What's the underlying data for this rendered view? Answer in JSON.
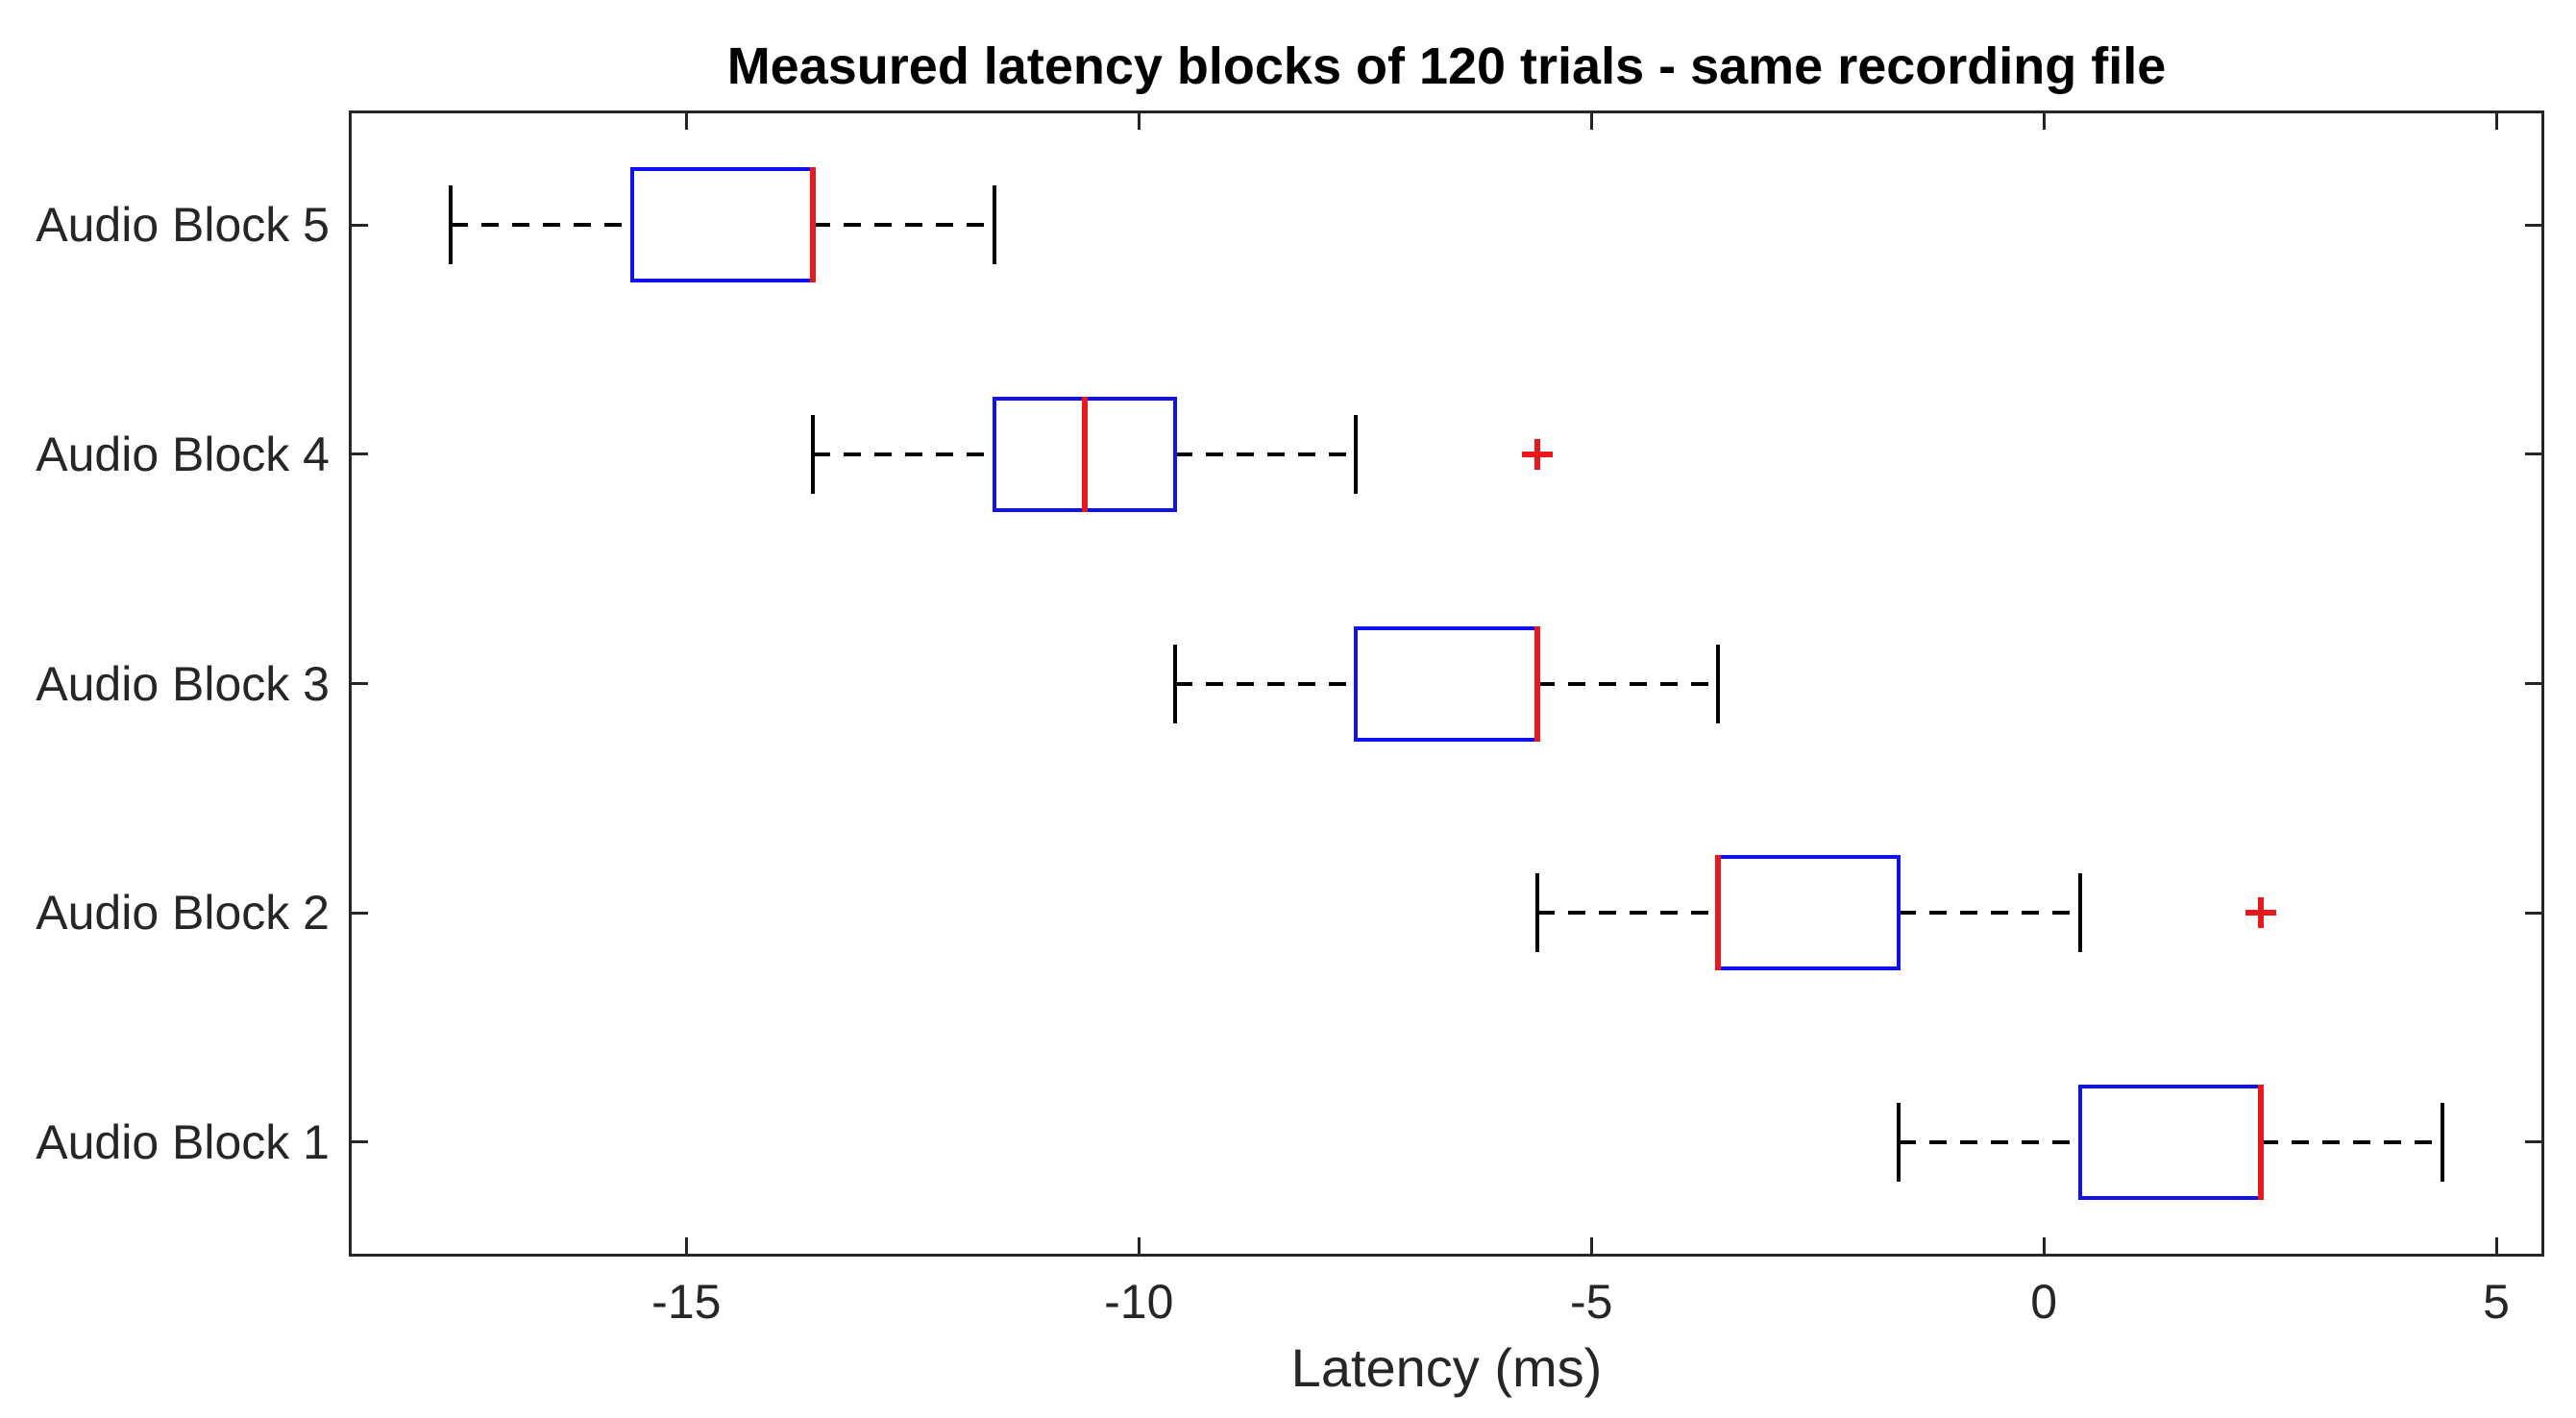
{
  "chart_data": {
    "type": "boxplot",
    "orientation": "horizontal",
    "title": "Measured latency blocks of 120 trials - same recording file",
    "xlabel": "Latency (ms)",
    "ylabel": "",
    "x_ticks": [
      -15,
      -10,
      -5,
      0,
      5
    ],
    "xlim": [
      -18.73,
      5.53
    ],
    "ylim": [
      0.5,
      5.5
    ],
    "grid": false,
    "categories_top_to_bottom": [
      "Audio Block 5",
      "Audio Block 4",
      "Audio Block 3",
      "Audio Block 2",
      "Audio Block 1"
    ],
    "boxes": [
      {
        "label": "Audio Block 5",
        "whisker_low": -17.6,
        "q1": -15.6,
        "median": -13.6,
        "q3": -13.6,
        "whisker_high": -11.6,
        "outliers": []
      },
      {
        "label": "Audio Block 4",
        "whisker_low": -13.6,
        "q1": -11.6,
        "median": -10.6,
        "q3": -9.6,
        "whisker_high": -7.6,
        "outliers": [
          -5.6
        ]
      },
      {
        "label": "Audio Block 3",
        "whisker_low": -9.6,
        "q1": -7.6,
        "median": -5.6,
        "q3": -5.6,
        "whisker_high": -3.6,
        "outliers": []
      },
      {
        "label": "Audio Block 2",
        "whisker_low": -5.6,
        "q1": -3.6,
        "median": -3.6,
        "q3": -1.6,
        "whisker_high": 0.4,
        "outliers": [
          2.4
        ]
      },
      {
        "label": "Audio Block 1",
        "whisker_low": -1.6,
        "q1": 0.4,
        "median": 2.4,
        "q3": 2.4,
        "whisker_high": 4.4,
        "outliers": []
      }
    ],
    "colors": {
      "box": "#1111ee",
      "median": "#e8191e",
      "whisker": "#000000",
      "whisker_cap": "#000000",
      "outlier": "#e8191e",
      "axis": "#262626",
      "title_text": "#000000",
      "background": "#ffffff"
    },
    "styles": {
      "whisker_linestyle": "dashed",
      "outlier_marker": "+",
      "tick_direction": "in",
      "box_on_all_sides": true
    }
  }
}
